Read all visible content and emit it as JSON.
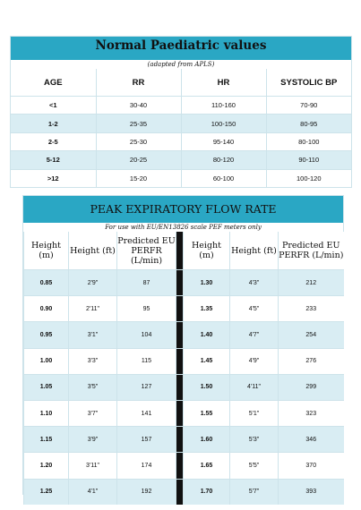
{
  "vitals": {
    "title": "Normal Paediatric values",
    "subtitle": "(adapted from APLS)",
    "headers": [
      "AGE",
      "RR",
      "HR",
      "SYSTOLIC BP"
    ],
    "rows": [
      [
        "<1",
        "30-40",
        "110-160",
        "70-90"
      ],
      [
        "1-2",
        "25-35",
        "100-150",
        "80-95"
      ],
      [
        "2-5",
        "25-30",
        "95-140",
        "80-100"
      ],
      [
        "5-12",
        "20-25",
        "80-120",
        "90-110"
      ],
      [
        ">12",
        "15-20",
        "60-100",
        "100-120"
      ]
    ]
  },
  "pef": {
    "title": "PEAK EXPIRATORY FLOW RATE",
    "subtitle": "For use with EU/EN13826 scale PEF meters only",
    "headers": [
      "Height (m)",
      "Height (ft)",
      "Predicted EU PERFR (L/min)",
      "Height (m)",
      "Height (ft)",
      "Predicted EU PERFR (L/min)"
    ],
    "rows": [
      [
        "0.85",
        "2'9\"",
        "87",
        "1.30",
        "4'3\"",
        "212"
      ],
      [
        "0.90",
        "2'11\"",
        "95",
        "1.35",
        "4'5\"",
        "233"
      ],
      [
        "0.95",
        "3'1\"",
        "104",
        "1.40",
        "4'7\"",
        "254"
      ],
      [
        "1.00",
        "3'3\"",
        "115",
        "1.45",
        "4'9\"",
        "276"
      ],
      [
        "1.05",
        "3'5\"",
        "127",
        "1.50",
        "4'11\"",
        "299"
      ],
      [
        "1.10",
        "3'7\"",
        "141",
        "1.55",
        "5'1\"",
        "323"
      ],
      [
        "1.15",
        "3'9\"",
        "157",
        "1.60",
        "5'3\"",
        "346"
      ],
      [
        "1.20",
        "3'11\"",
        "174",
        "1.65",
        "5'5\"",
        "370"
      ],
      [
        "1.25",
        "4'1\"",
        "192",
        "1.70",
        "5'7\"",
        "393"
      ]
    ]
  }
}
